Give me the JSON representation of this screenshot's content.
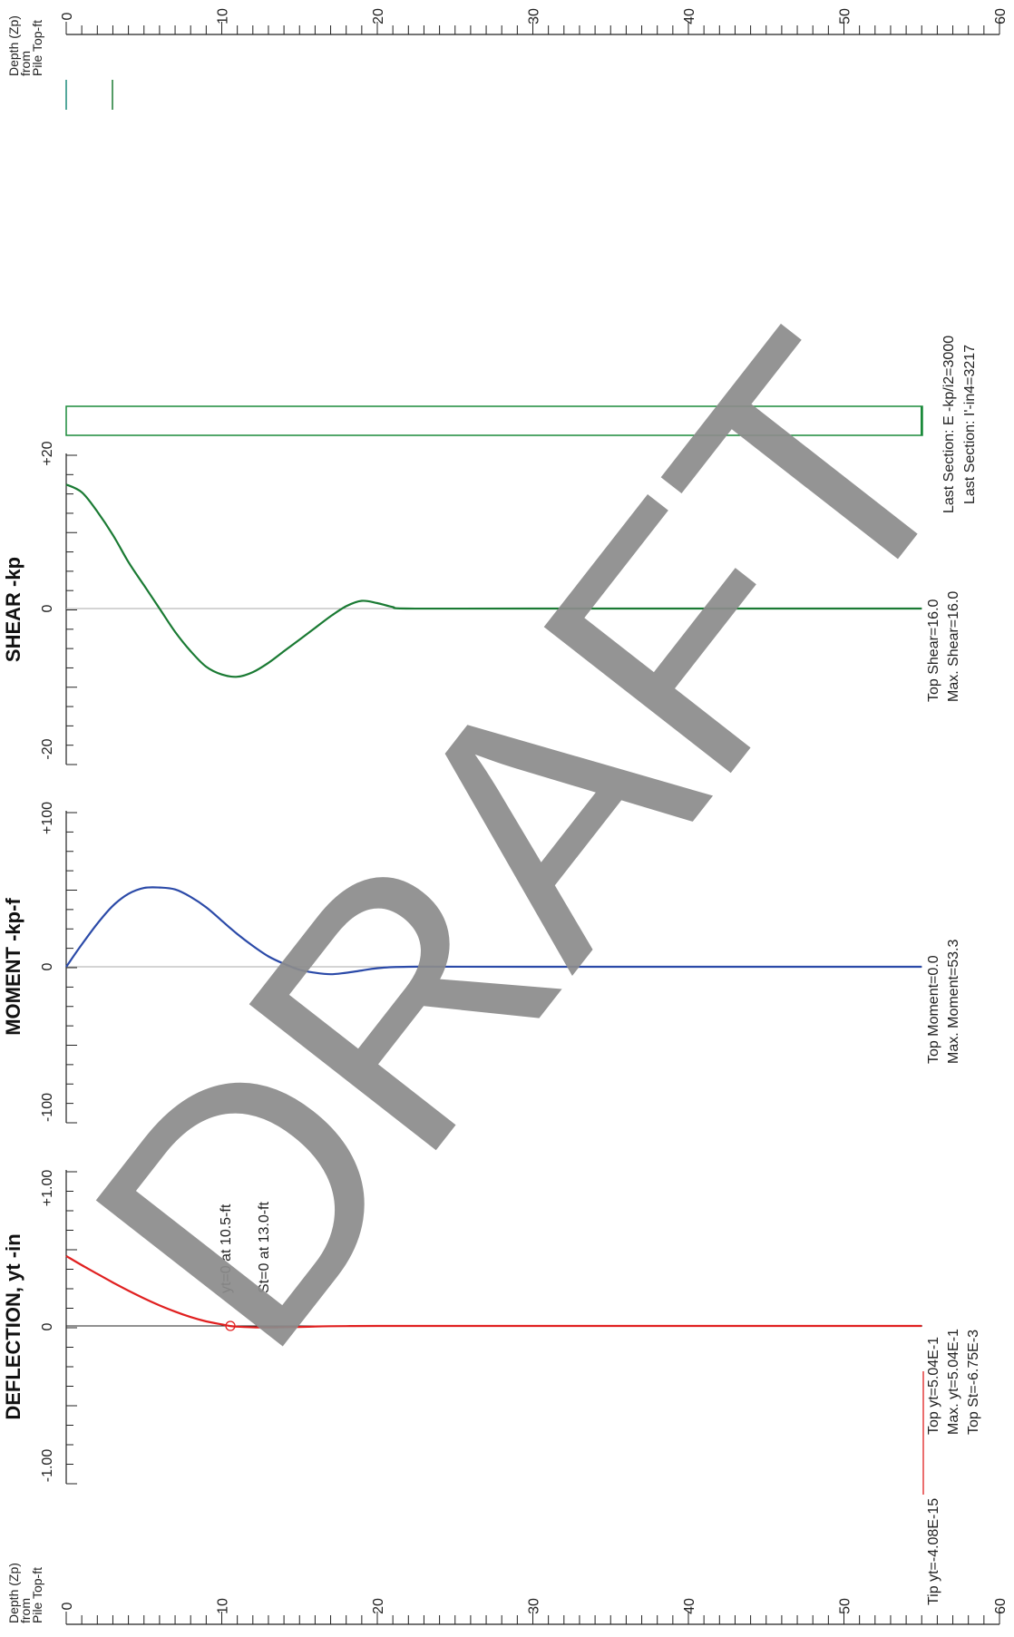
{
  "depth_axis": {
    "label_lines": [
      "Depth (Zp)",
      "from",
      "Pile Top-ft"
    ],
    "ticks": [
      "0",
      "10",
      "20",
      "30",
      "40",
      "50",
      "60"
    ]
  },
  "watermark": "DRAFT",
  "colors": {
    "deflection": "#e02020",
    "moment": "#2b4aa8",
    "shear": "#1a7a33",
    "section": "#1a8a3a",
    "zero_line": "#999999"
  },
  "panels": {
    "deflection": {
      "title": "DEFLECTION, yt -in",
      "ticks": [
        "+1.00",
        "0",
        "-1.00"
      ],
      "notes": [
        "yt=0 at 10.5-ft",
        "St=0 at 13.0-ft"
      ],
      "summary": [
        "Top yt=5.04E-1",
        "Max. yt=5.04E-1",
        "Top St=-6.75E-3"
      ],
      "tip": "Tip yt=-4.08E-15"
    },
    "moment": {
      "title": "MOMENT -kp-f",
      "ticks": [
        "+100",
        "0",
        "-100"
      ],
      "summary": [
        "Top Moment=0.0",
        "Max.  Moment=53.3"
      ]
    },
    "shear": {
      "title": "SHEAR -kp",
      "ticks": [
        "+20",
        "0",
        "-20"
      ],
      "summary": [
        "Top Shear=16.0",
        "Max. Shear=16.0"
      ]
    },
    "section": {
      "summary": [
        "Last Section: E -kp/i2=3000",
        "Last Section: I'-in4=3217"
      ]
    }
  },
  "chart_data": [
    {
      "type": "line",
      "title": "DEFLECTION, yt -in",
      "xlabel": "Depth (Zp) from Pile Top-ft",
      "ylabel": "DEFLECTION, yt -in",
      "xlim": [
        0,
        60
      ],
      "ylim": [
        -1.0,
        1.0
      ],
      "series": [
        {
          "values": [
            [
              0,
              0.504
            ],
            [
              1,
              0.438
            ],
            [
              2,
              0.375
            ],
            [
              3,
              0.313
            ],
            [
              4,
              0.254
            ],
            [
              5,
              0.199
            ],
            [
              6,
              0.148
            ],
            [
              7,
              0.103
            ],
            [
              8,
              0.064
            ],
            [
              9,
              0.033
            ],
            [
              10,
              0.011
            ],
            [
              10.5,
              0.0
            ],
            [
              11,
              -0.005
            ],
            [
              12,
              -0.01
            ],
            [
              13,
              -0.011
            ],
            [
              14,
              -0.009
            ],
            [
              15,
              -0.007
            ],
            [
              16,
              -0.004
            ],
            [
              17,
              -0.002
            ],
            [
              18,
              -0.001
            ],
            [
              20,
              0.0
            ],
            [
              30,
              0.0
            ],
            [
              40,
              0.0
            ],
            [
              55,
              0.0
            ]
          ]
        }
      ]
    },
    {
      "type": "line",
      "title": "MOMENT -kp-f",
      "xlabel": "Depth (Zp) from Pile Top-ft",
      "ylabel": "MOMENT -kp-f",
      "xlim": [
        0,
        60
      ],
      "ylim": [
        -100,
        100
      ],
      "series": [
        {
          "values": [
            [
              0,
              0
            ],
            [
              1,
              15
            ],
            [
              2,
              29
            ],
            [
              3,
              41
            ],
            [
              4,
              49
            ],
            [
              5,
              53
            ],
            [
              6,
              53.3
            ],
            [
              7,
              52
            ],
            [
              8,
              47
            ],
            [
              9,
              40
            ],
            [
              10,
              31
            ],
            [
              11,
              22
            ],
            [
              12,
              14
            ],
            [
              13,
              7
            ],
            [
              14,
              2
            ],
            [
              15,
              -2
            ],
            [
              16,
              -4
            ],
            [
              17,
              -5
            ],
            [
              18,
              -4
            ],
            [
              19,
              -2.5
            ],
            [
              20,
              -1
            ],
            [
              22,
              0
            ],
            [
              30,
              0
            ],
            [
              55,
              0
            ]
          ]
        }
      ]
    },
    {
      "type": "line",
      "title": "SHEAR -kp",
      "xlabel": "Depth (Zp) from Pile Top-ft",
      "ylabel": "SHEAR -kp",
      "xlim": [
        0,
        60
      ],
      "ylim": [
        -20,
        20
      ],
      "series": [
        {
          "values": [
            [
              0,
              16.0
            ],
            [
              1,
              15.0
            ],
            [
              2,
              12.5
            ],
            [
              3,
              9.5
            ],
            [
              4,
              6.0
            ],
            [
              5,
              3.0
            ],
            [
              6,
              0.0
            ],
            [
              7,
              -3.0
            ],
            [
              8,
              -5.5
            ],
            [
              9,
              -7.5
            ],
            [
              10,
              -8.5
            ],
            [
              11,
              -8.8
            ],
            [
              12,
              -8.2
            ],
            [
              13,
              -7.0
            ],
            [
              14,
              -5.5
            ],
            [
              15,
              -4.0
            ],
            [
              16,
              -2.5
            ],
            [
              17,
              -1.0
            ],
            [
              18,
              0.3
            ],
            [
              19,
              1.0
            ],
            [
              20,
              0.7
            ],
            [
              21,
              0.2
            ],
            [
              22,
              0.0
            ],
            [
              30,
              0.0
            ],
            [
              55,
              0.0
            ]
          ]
        }
      ]
    }
  ]
}
